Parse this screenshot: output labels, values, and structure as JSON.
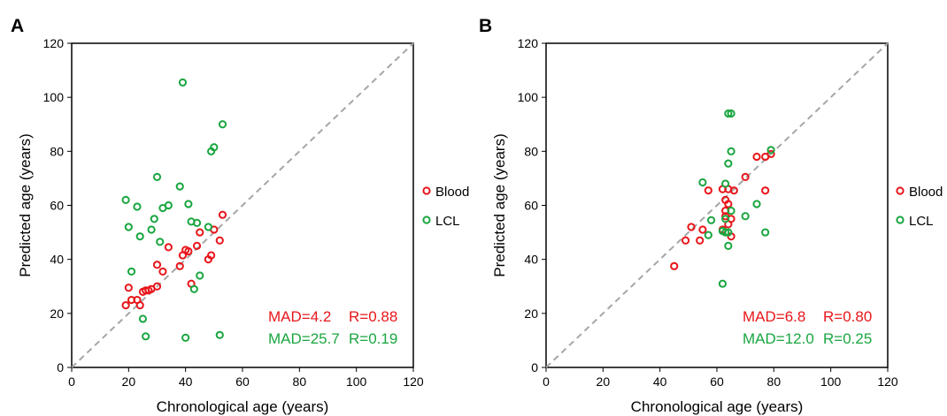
{
  "colors": {
    "blood": "#e8161b",
    "lcl": "#1aa640",
    "diag": "#a6a6a6",
    "axis": "#000000"
  },
  "chart_data": [
    {
      "panel_label": "A",
      "type": "scatter",
      "xlabel": "Chronological age (years)",
      "ylabel": "Predicted age (years)",
      "xlim": [
        0,
        120
      ],
      "ylim": [
        0,
        120
      ],
      "xticks": [
        "0",
        "20",
        "40",
        "60",
        "80",
        "100",
        "120"
      ],
      "yticks": [
        "0",
        "20",
        "40",
        "60",
        "80",
        "100",
        "120"
      ],
      "grid": false,
      "reference_line": "y = x (dashed)",
      "legend": {
        "position": "right",
        "entries": [
          "Blood",
          "LCL"
        ]
      },
      "annotations": [
        {
          "mad": "MAD=4.2",
          "r": "R=0.88",
          "color": "blood"
        },
        {
          "mad": "MAD=25.7",
          "r": "R=0.19",
          "color": "lcl"
        }
      ],
      "series": [
        {
          "name": "Blood",
          "color": "blood",
          "points": [
            [
              19,
              23
            ],
            [
              20,
              29.5
            ],
            [
              21,
              25
            ],
            [
              23,
              25
            ],
            [
              24,
              23
            ],
            [
              25,
              28
            ],
            [
              26,
              28.5
            ],
            [
              27,
              28.5
            ],
            [
              28,
              29
            ],
            [
              30,
              30
            ],
            [
              30,
              38
            ],
            [
              32,
              35.5
            ],
            [
              34,
              44.5
            ],
            [
              38,
              37.5
            ],
            [
              39,
              41.5
            ],
            [
              40,
              43.5
            ],
            [
              41,
              43
            ],
            [
              42,
              31
            ],
            [
              44,
              45
            ],
            [
              45,
              50
            ],
            [
              48,
              40
            ],
            [
              49,
              41.5
            ],
            [
              50,
              51
            ],
            [
              52,
              47
            ],
            [
              53,
              56.5
            ]
          ]
        },
        {
          "name": "LCL",
          "color": "lcl",
          "points": [
            [
              19,
              62
            ],
            [
              20,
              52
            ],
            [
              21,
              35.5
            ],
            [
              23,
              59.5
            ],
            [
              24,
              48.5
            ],
            [
              25,
              18
            ],
            [
              26,
              11.5
            ],
            [
              28,
              51
            ],
            [
              29,
              55
            ],
            [
              30,
              70.5
            ],
            [
              31,
              46.5
            ],
            [
              32,
              59
            ],
            [
              34,
              60
            ],
            [
              38,
              67
            ],
            [
              39,
              105.5
            ],
            [
              40,
              11
            ],
            [
              41,
              60.5
            ],
            [
              42,
              54
            ],
            [
              43,
              29
            ],
            [
              44,
              53.5
            ],
            [
              45,
              34
            ],
            [
              48,
              52
            ],
            [
              49,
              80
            ],
            [
              50,
              81.5
            ],
            [
              52,
              12
            ],
            [
              53,
              90
            ]
          ]
        }
      ]
    },
    {
      "panel_label": "B",
      "type": "scatter",
      "xlabel": "Chronological age (years)",
      "ylabel": "Predicted age (years)",
      "xlim": [
        0,
        120
      ],
      "ylim": [
        0,
        120
      ],
      "xticks": [
        "0",
        "20",
        "40",
        "60",
        "80",
        "100",
        "120"
      ],
      "yticks": [
        "0",
        "20",
        "40",
        "60",
        "80",
        "100",
        "120"
      ],
      "grid": false,
      "reference_line": "y = x (dashed)",
      "legend": {
        "position": "right",
        "entries": [
          "Blood",
          "LCL"
        ]
      },
      "annotations": [
        {
          "mad": "MAD=6.8",
          "r": "R=0.80",
          "color": "blood"
        },
        {
          "mad": "MAD=12.0",
          "r": "R=0.25",
          "color": "lcl"
        }
      ],
      "series": [
        {
          "name": "Blood",
          "color": "blood",
          "points": [
            [
              45,
              37.5
            ],
            [
              49,
              47
            ],
            [
              51,
              52
            ],
            [
              54,
              47
            ],
            [
              55,
              51
            ],
            [
              57,
              65.5
            ],
            [
              62,
              51
            ],
            [
              62,
              66
            ],
            [
              63,
              58
            ],
            [
              63,
              62
            ],
            [
              63,
              56
            ],
            [
              64,
              60.5
            ],
            [
              64,
              53
            ],
            [
              64,
              66
            ],
            [
              65,
              55
            ],
            [
              65,
              48.5
            ],
            [
              66,
              65.5
            ],
            [
              70,
              70.5
            ],
            [
              74,
              78
            ],
            [
              77,
              65.5
            ],
            [
              77,
              78
            ],
            [
              79,
              79
            ]
          ]
        },
        {
          "name": "LCL",
          "color": "lcl",
          "points": [
            [
              55,
              68.5
            ],
            [
              57,
              49
            ],
            [
              58,
              54.5
            ],
            [
              62,
              50.5
            ],
            [
              62,
              31
            ],
            [
              63,
              50
            ],
            [
              63,
              68
            ],
            [
              63,
              55
            ],
            [
              64,
              75.5
            ],
            [
              64,
              94
            ],
            [
              64,
              50
            ],
            [
              64,
              45
            ],
            [
              65,
              94
            ],
            [
              65,
              58
            ],
            [
              65,
              80
            ],
            [
              70,
              56
            ],
            [
              74,
              60.5
            ],
            [
              77,
              50
            ],
            [
              79,
              80.5
            ]
          ]
        }
      ]
    }
  ]
}
